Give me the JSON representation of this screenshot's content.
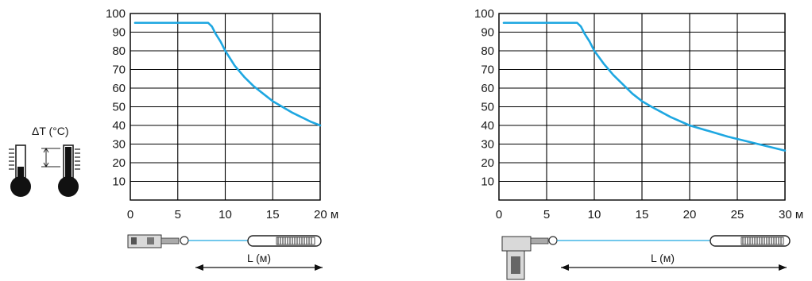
{
  "colors": {
    "curve": "#1ea7e1",
    "grid": "#000000",
    "text": "#1a1a1a",
    "device": "#555555"
  },
  "legend": {
    "delta_t_label": "ΔT (°C)",
    "length_label": "L (м)"
  },
  "chart_data": [
    {
      "type": "line",
      "title": "",
      "xlabel": "",
      "ylabel": "",
      "x_ticks": [
        "0",
        "5",
        "10",
        "15",
        "20 м"
      ],
      "y_ticks": [
        "10",
        "20",
        "30",
        "40",
        "50",
        "60",
        "70",
        "80",
        "90",
        "100"
      ],
      "xlim": [
        0,
        20
      ],
      "ylim": [
        0,
        100
      ],
      "grid": true,
      "series": [
        {
          "x": [
            0.5,
            2,
            4,
            6,
            7,
            8.2,
            8.6,
            9,
            9.5,
            10,
            11,
            12,
            13,
            14,
            15,
            16,
            17,
            18,
            19,
            20
          ],
          "y": [
            95,
            95,
            95,
            95,
            95,
            95,
            93,
            89,
            85,
            80,
            72,
            66,
            61,
            57,
            53,
            50,
            47,
            44.5,
            42,
            40
          ]
        }
      ]
    },
    {
      "type": "line",
      "title": "",
      "xlabel": "",
      "ylabel": "",
      "x_ticks": [
        "0",
        "5",
        "10",
        "15",
        "20",
        "25",
        "30 м"
      ],
      "y_ticks": [
        "10",
        "20",
        "30",
        "40",
        "50",
        "60",
        "70",
        "80",
        "90",
        "100"
      ],
      "xlim": [
        0,
        30
      ],
      "ylim": [
        0,
        100
      ],
      "grid": true,
      "series": [
        {
          "x": [
            0.5,
            2,
            4,
            6,
            7,
            8.2,
            8.6,
            9,
            9.5,
            10,
            11,
            12,
            13,
            14,
            15,
            16,
            18,
            20,
            22,
            24,
            26,
            28,
            30
          ],
          "y": [
            95,
            95,
            95,
            95,
            95,
            95,
            93,
            89,
            85,
            80,
            73,
            67,
            62,
            57,
            53,
            50,
            44.5,
            40,
            37,
            34,
            31.5,
            29,
            26.5
          ]
        }
      ]
    }
  ]
}
